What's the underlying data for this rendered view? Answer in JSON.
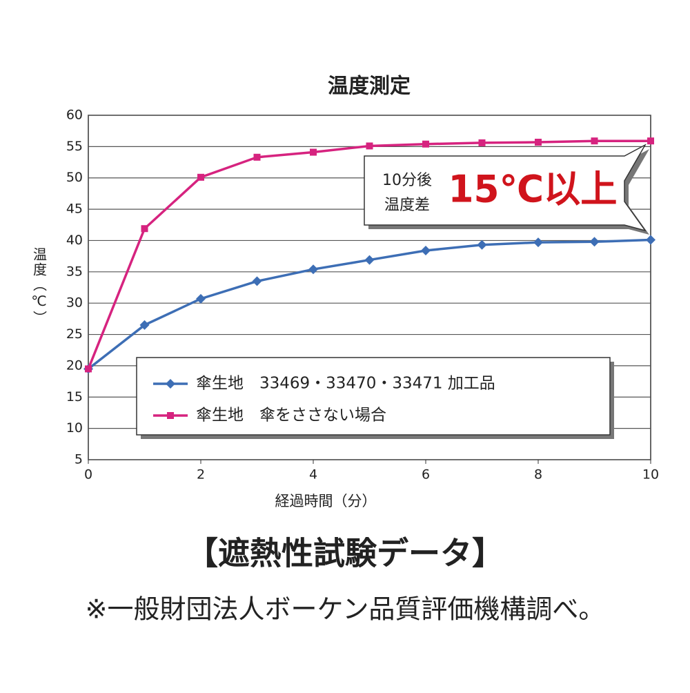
{
  "chart_data": {
    "type": "line",
    "title": "温度測定",
    "x": [
      0,
      1,
      2,
      3,
      4,
      5,
      6,
      7,
      8,
      9,
      10
    ],
    "series": [
      {
        "name": "傘生地　33469・33470・33471 加工品",
        "color": "#3d6eb5",
        "marker": "diamond",
        "values": [
          19.5,
          26.5,
          30.7,
          33.5,
          35.4,
          36.9,
          38.4,
          39.3,
          39.7,
          39.8,
          40.1
        ]
      },
      {
        "name": "傘生地　傘をささない場合",
        "color": "#d6237f",
        "marker": "square",
        "values": [
          19.5,
          41.9,
          50.1,
          53.3,
          54.1,
          55.1,
          55.4,
          55.6,
          55.7,
          55.9,
          55.9
        ]
      }
    ],
    "xlim": [
      0,
      10
    ],
    "xticks": [
      0,
      2,
      4,
      6,
      8,
      10
    ],
    "ylim": [
      5,
      60
    ],
    "yticks": [
      5,
      10,
      15,
      20,
      25,
      30,
      35,
      40,
      45,
      50,
      55,
      60
    ],
    "xlabel": "経過時間（分）",
    "ylabel": "温度（℃）",
    "grid": true,
    "annotation": {
      "lines": [
        "10分後",
        "温度差"
      ],
      "highlight": "15℃以上"
    }
  },
  "footer": {
    "heading": "【遮熱性試験データ】",
    "note": "※一般財団法人ボーケン品質評価機構調べ。"
  }
}
